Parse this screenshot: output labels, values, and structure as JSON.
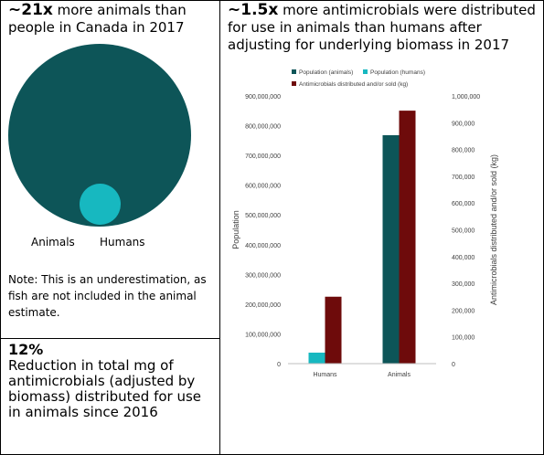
{
  "panel_left": {
    "headline_strong": "~21x",
    "headline_rest": " more animals than people in Canada in 2017",
    "bubble_labels": {
      "animals": "Animals",
      "humans": "Humans"
    },
    "note": "Note: This is an underestimation, as fish are not included in the animal estimate.",
    "colors": {
      "animals": "#0d5558",
      "humans": "#17b8c0"
    }
  },
  "panel_bottom": {
    "stat": "12%",
    "text": "Reduction in total mg of antimicrobials (adjusted by biomass) distributed for use in animals since 2016"
  },
  "panel_right": {
    "headline_strong": "~1.5x",
    "headline_rest": " more antimicrobials were distributed for use in animals than humans after adjusting for underlying biomass in 2017"
  },
  "chart_data": {
    "type": "bar",
    "categories": [
      "Humans",
      "Animals"
    ],
    "series": [
      {
        "name": "Population (animals)",
        "axis": "left",
        "color": "#0d5558",
        "values": [
          null,
          768000000
        ]
      },
      {
        "name": "Population (humans)",
        "axis": "left",
        "color": "#17b8c0",
        "values": [
          37000000,
          null
        ]
      },
      {
        "name": "Antimicrobials distributed and/or sold (kg)",
        "axis": "right",
        "color": "#6e0b0b",
        "values": [
          250000,
          945000
        ]
      }
    ],
    "ylabel": "Population",
    "y2label": "Antimicrobials distributed and/or sold (kg)",
    "ylim": [
      0,
      900000000
    ],
    "y2lim": [
      0,
      1000000
    ],
    "yticks": [
      "0",
      "100,000,000",
      "200,000,000",
      "300,000,000",
      "400,000,000",
      "500,000,000",
      "600,000,000",
      "700,000,000",
      "800,000,000",
      "900,000,000"
    ],
    "y2ticks": [
      "0",
      "100,000",
      "200,000",
      "300,000",
      "400,000",
      "500,000",
      "600,000",
      "700,000",
      "800,000",
      "900,000",
      "1,000,000"
    ],
    "legend_position": "top",
    "grid": false
  }
}
